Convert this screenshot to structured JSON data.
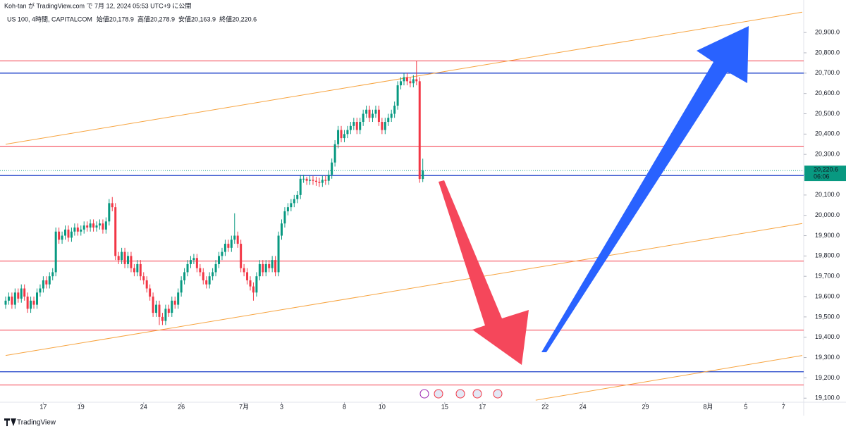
{
  "chart_data": {
    "type": "candlestick",
    "published": "Koh-tan が TradingView.com で 7月 12, 2024 05:53 UTC+9 に公開",
    "symbol": "US 100, 4時間, CAPITALCOM",
    "ohlc_legend": [
      {
        "label": "始値",
        "value": "20,178.9"
      },
      {
        "label": "高値",
        "value": "20,278.9"
      },
      {
        "label": "安値",
        "value": "20,163.9"
      },
      {
        "label": "終値",
        "value": "20,220.6"
      }
    ],
    "last_price_label": "20,220.6",
    "countdown": "06:06",
    "brand": "TradingView",
    "up_color": "#089981",
    "down_color": "#f23645",
    "open": [
      19560,
      19580,
      19600,
      19560,
      19620,
      19590,
      19640,
      19600,
      19540,
      19580,
      19560,
      19620,
      19640,
      19680,
      19660,
      19700,
      19720,
      19920,
      19880,
      19900,
      19930,
      19890,
      19920,
      19940,
      19920,
      19930,
      19950,
      19940,
      19960,
      19940,
      19950,
      19960,
      19930,
      19970,
      20060,
      20040,
      19800,
      19780,
      19820,
      19760,
      19800,
      19740,
      19720,
      19760,
      19700,
      19680,
      19640,
      19600,
      19520,
      19560,
      19500,
      19480,
      19540,
      19520,
      19580,
      19560,
      19620,
      19680,
      19720,
      19760,
      19780,
      19790,
      19740,
      19720,
      19680,
      19660,
      19700,
      19720,
      19760,
      19800,
      19820,
      19860,
      19840,
      19880,
      19900,
      19860,
      19740,
      19720,
      19680,
      19650,
      19620,
      19700,
      19760,
      19720,
      19760,
      19740,
      19780,
      19720,
      19900,
      19960,
      20020,
      20040,
      20060,
      20080,
      20100,
      20180,
      20180,
      20170,
      20175,
      20170,
      20165,
      20160,
      20175,
      20170,
      20200,
      20260,
      20350,
      20420,
      20380,
      20400,
      20420,
      20440,
      20460,
      20420,
      20460,
      20500,
      20520,
      20480,
      20500,
      20520,
      20460,
      20420,
      20460,
      20480,
      20500,
      20540,
      20640,
      20660,
      20680,
      20660,
      20650,
      20670,
      20660,
      20178.9
    ],
    "high": [
      19600,
      19620,
      19620,
      19640,
      19640,
      19660,
      19660,
      19620,
      19600,
      19600,
      19640,
      19660,
      19700,
      19700,
      19720,
      19740,
      19940,
      19940,
      19920,
      19950,
      19950,
      19940,
      19960,
      19960,
      19950,
      19970,
      19970,
      19980,
      19980,
      19970,
      19980,
      19980,
      19990,
      20080,
      20090,
      20060,
      19820,
      19840,
      19840,
      19820,
      19820,
      19760,
      19780,
      19780,
      19720,
      19700,
      19660,
      19620,
      19580,
      19580,
      19520,
      19560,
      19560,
      19600,
      19600,
      19640,
      19700,
      19740,
      19780,
      19800,
      19810,
      19810,
      19760,
      19740,
      19700,
      19720,
      19740,
      19780,
      19820,
      19840,
      19880,
      19880,
      19900,
      20010,
      19920,
      19880,
      19760,
      19740,
      19700,
      19670,
      19720,
      19780,
      19780,
      19780,
      19780,
      19800,
      19800,
      19920,
      19980,
      20040,
      20060,
      20080,
      20100,
      20120,
      20200,
      20200,
      20190,
      20195,
      20195,
      20190,
      20185,
      20195,
      20195,
      20220,
      20280,
      20370,
      20440,
      20440,
      20420,
      20440,
      20460,
      20480,
      20480,
      20480,
      20520,
      20540,
      20540,
      20520,
      20540,
      20540,
      20480,
      20480,
      20500,
      20520,
      20560,
      20660,
      20680,
      20700,
      20700,
      20680,
      20690,
      20760,
      20680,
      20278.9
    ],
    "low": [
      19540,
      19560,
      19540,
      19540,
      19570,
      19570,
      19580,
      19520,
      19520,
      19540,
      19540,
      19600,
      19620,
      19640,
      19640,
      19680,
      19700,
      19860,
      19860,
      19880,
      19870,
      19870,
      19900,
      19900,
      19900,
      19910,
      19920,
      19920,
      19920,
      19920,
      19930,
      19910,
      19910,
      19950,
      20020,
      19780,
      19760,
      19760,
      19740,
      19740,
      19720,
      19700,
      19700,
      19680,
      19660,
      19620,
      19580,
      19500,
      19500,
      19460,
      19460,
      19460,
      19500,
      19500,
      19540,
      19540,
      19600,
      19660,
      19700,
      19740,
      19760,
      19720,
      19700,
      19660,
      19640,
      19640,
      19680,
      19700,
      19740,
      19780,
      19800,
      19820,
      19820,
      19860,
      19840,
      19720,
      19700,
      19660,
      19630,
      19580,
      19600,
      19680,
      19700,
      19700,
      19720,
      19720,
      19700,
      19700,
      19880,
      19940,
      20000,
      20020,
      20040,
      20060,
      20080,
      20160,
      20150,
      20150,
      20150,
      20145,
      20140,
      20140,
      20150,
      20150,
      20180,
      20240,
      20330,
      20360,
      20360,
      20380,
      20400,
      20420,
      20400,
      20400,
      20440,
      20480,
      20460,
      20460,
      20480,
      20440,
      20400,
      20400,
      20440,
      20460,
      20480,
      20520,
      20620,
      20640,
      20640,
      20630,
      20630,
      20640,
      20160,
      20163.9
    ],
    "close": [
      19580,
      19600,
      19560,
      19620,
      19590,
      19640,
      19600,
      19540,
      19580,
      19560,
      19620,
      19640,
      19680,
      19660,
      19700,
      19720,
      19920,
      19880,
      19900,
      19930,
      19890,
      19920,
      19940,
      19920,
      19930,
      19950,
      19940,
      19960,
      19940,
      19950,
      19960,
      19930,
      19970,
      20060,
      20040,
      19800,
      19780,
      19820,
      19760,
      19800,
      19740,
      19720,
      19760,
      19700,
      19680,
      19640,
      19600,
      19520,
      19560,
      19500,
      19480,
      19540,
      19520,
      19580,
      19560,
      19620,
      19680,
      19720,
      19760,
      19780,
      19790,
      19740,
      19720,
      19680,
      19660,
      19700,
      19720,
      19760,
      19800,
      19820,
      19860,
      19840,
      19880,
      19900,
      19860,
      19740,
      19720,
      19680,
      19650,
      19620,
      19700,
      19760,
      19720,
      19760,
      19740,
      19780,
      19720,
      19900,
      19960,
      20020,
      20040,
      20060,
      20080,
      20100,
      20180,
      20180,
      20170,
      20175,
      20170,
      20165,
      20160,
      20175,
      20170,
      20200,
      20260,
      20350,
      20420,
      20380,
      20400,
      20420,
      20440,
      20460,
      20420,
      20460,
      20500,
      20520,
      20480,
      20500,
      20520,
      20460,
      20420,
      20460,
      20480,
      20500,
      20540,
      20640,
      20660,
      20680,
      20660,
      20650,
      20670,
      20660,
      20178.9,
      20220.6
    ],
    "xlim": [
      0,
      254
    ],
    "xticks": [
      {
        "value": 12,
        "label": "17"
      },
      {
        "value": 24,
        "label": "19"
      },
      {
        "value": 44,
        "label": "24"
      },
      {
        "value": 56,
        "label": "26"
      },
      {
        "value": 76,
        "label": "7月"
      },
      {
        "value": 88,
        "label": "3"
      },
      {
        "value": 108,
        "label": "8"
      },
      {
        "value": 120,
        "label": "10"
      },
      {
        "value": 140,
        "label": "15"
      },
      {
        "value": 152,
        "label": "17"
      },
      {
        "value": 172,
        "label": "22"
      },
      {
        "value": 184,
        "label": "24"
      },
      {
        "value": 204,
        "label": "29"
      },
      {
        "value": 224,
        "label": "8月"
      },
      {
        "value": 236,
        "label": "5"
      },
      {
        "value": 248,
        "label": "7"
      }
    ],
    "ylim": [
      19080,
      21060
    ],
    "yticks": [
      {
        "value": 19100,
        "label": "19,100.0"
      },
      {
        "value": 19200,
        "label": "19,200.0"
      },
      {
        "value": 19300,
        "label": "19,300.0"
      },
      {
        "value": 19400,
        "label": "19,400.0"
      },
      {
        "value": 19500,
        "label": "19,500.0"
      },
      {
        "value": 19600,
        "label": "19,600.0"
      },
      {
        "value": 19700,
        "label": "19,700.0"
      },
      {
        "value": 19800,
        "label": "19,800.0"
      },
      {
        "value": 19900,
        "label": "19,900.0"
      },
      {
        "value": 20000,
        "label": "20,000.0"
      },
      {
        "value": 20100,
        "label": "20,100.0"
      },
      {
        "value": 20200,
        "label": "20,200.0"
      },
      {
        "value": 20300,
        "label": "20,300.0"
      },
      {
        "value": 20400,
        "label": "20,400.0"
      },
      {
        "value": 20500,
        "label": "20,500.0"
      },
      {
        "value": 20600,
        "label": "20,600.0"
      },
      {
        "value": 20700,
        "label": "20,700.0"
      },
      {
        "value": 20800,
        "label": "20,800.0"
      },
      {
        "value": 20900,
        "label": "20,900.0"
      }
    ],
    "hlines": [
      {
        "value": 20760,
        "color": "#f23645"
      },
      {
        "value": 20700,
        "color": "#1e40c8"
      },
      {
        "value": 20340,
        "color": "#f23645"
      },
      {
        "value": 20196,
        "color": "#1e40c8"
      },
      {
        "value": 19775,
        "color": "#f23645"
      },
      {
        "value": 19435,
        "color": "#f23645"
      },
      {
        "value": 19230,
        "color": "#1e40c8"
      },
      {
        "value": 19165,
        "color": "#f23645"
      }
    ],
    "trendlines": [
      {
        "x": [
          0,
          254
        ],
        "y": [
          20350,
          21000
        ],
        "color": "#f7a440"
      },
      {
        "x": [
          0,
          254
        ],
        "y": [
          19310,
          19960
        ],
        "color": "#f7a440"
      },
      {
        "x": [
          169,
          254
        ],
        "y": [
          19090,
          19310
        ],
        "color": "#f7a440"
      }
    ]
  }
}
